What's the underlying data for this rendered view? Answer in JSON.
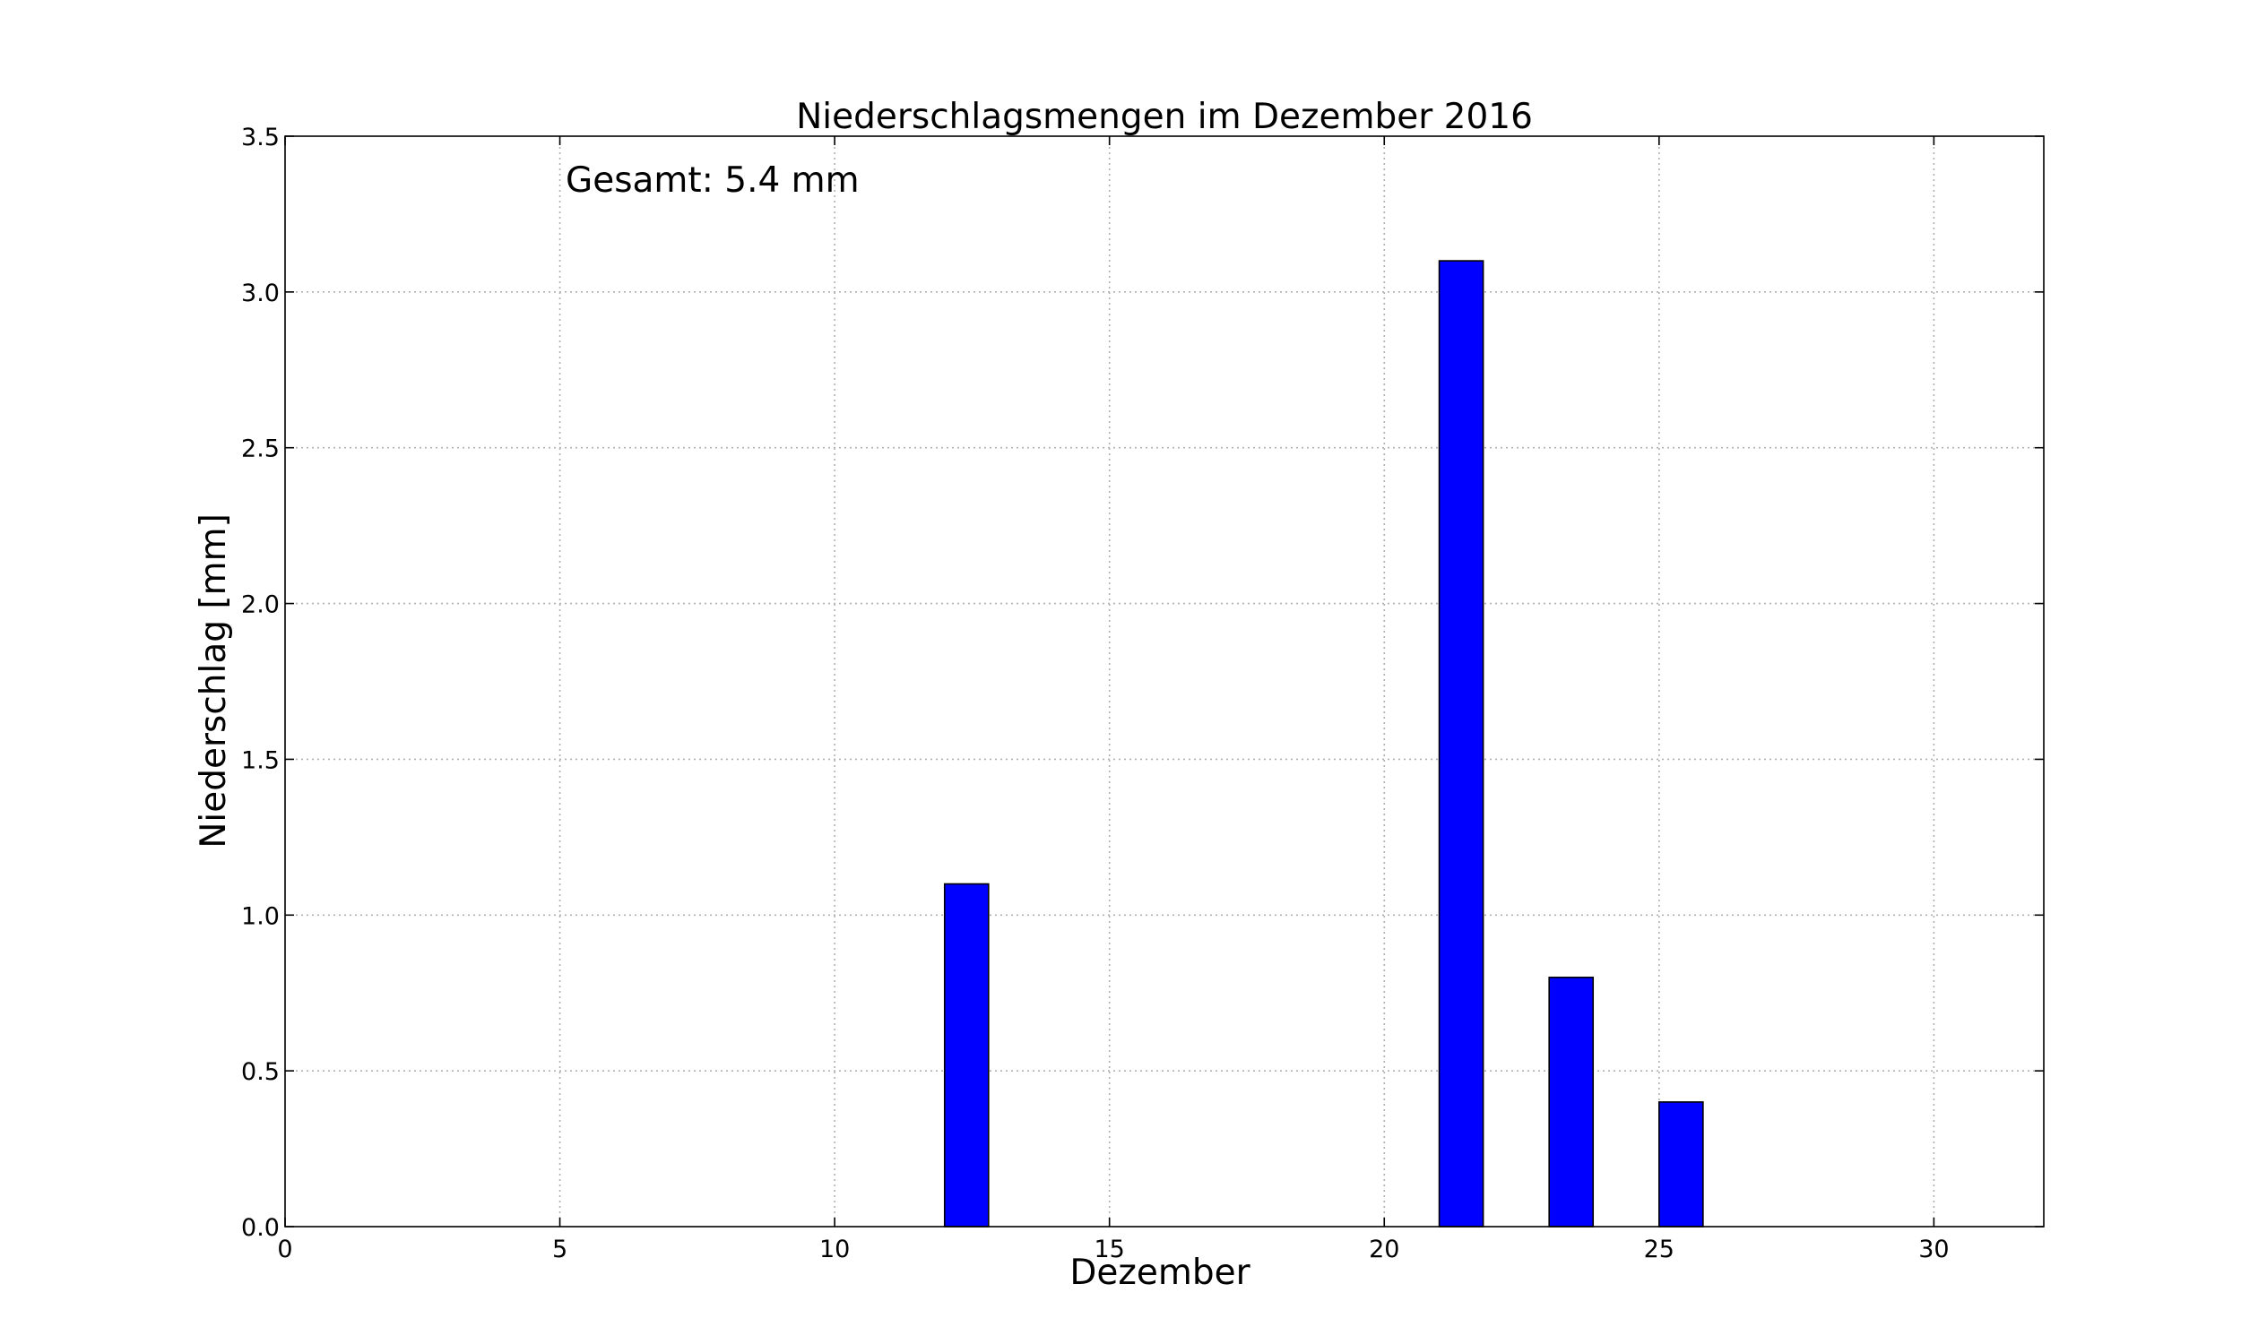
{
  "chart_data": {
    "type": "bar",
    "title": "Niederschlagsmengen im Dezember 2016",
    "xlabel": "Dezember",
    "ylabel": "Niederschlag [mm]",
    "annotation": "Gesamt: 5.4 mm",
    "xlim": [
      0,
      32
    ],
    "ylim": [
      0,
      3.5
    ],
    "xticks": [
      0,
      5,
      10,
      15,
      20,
      25,
      30
    ],
    "xtick_labels": [
      "0",
      "5",
      "10",
      "15",
      "20",
      "25",
      "30"
    ],
    "yticks": [
      0,
      0.5,
      1.0,
      1.5,
      2.0,
      2.5,
      3.0,
      3.5
    ],
    "ytick_labels": [
      "0.0",
      "0.5",
      "1.0",
      "1.5",
      "2.0",
      "2.5",
      "3.0",
      "3.5"
    ],
    "bar_width": 0.8,
    "bar_color": "#0000ff",
    "grid": true,
    "bars": [
      {
        "day": 12,
        "value": 1.1
      },
      {
        "day": 21,
        "value": 3.1
      },
      {
        "day": 23,
        "value": 0.8
      },
      {
        "day": 25,
        "value": 0.4
      }
    ]
  }
}
